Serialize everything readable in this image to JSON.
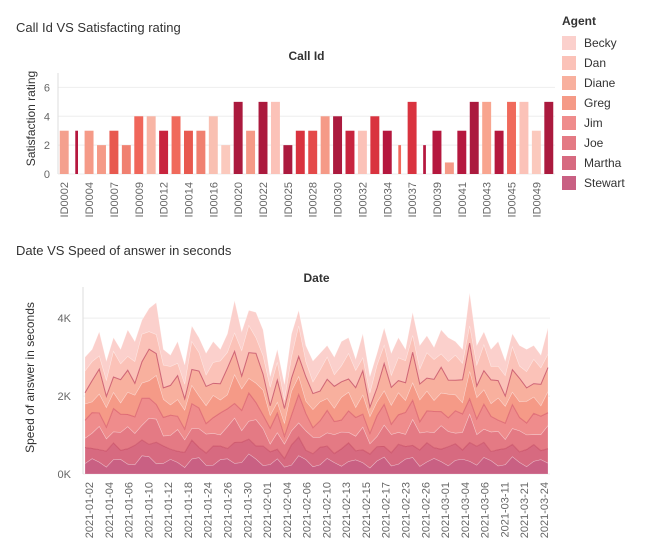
{
  "colors": {
    "Becky": "#fbd0cc",
    "Dan": "#fbc2b8",
    "Diane": "#f8b09e",
    "Greg": "#f59a87",
    "Jim": "#ef8c8c",
    "Joe": "#e47a84",
    "Martha": "#d76a80",
    "Stewart": "#c96083"
  },
  "legend": {
    "title": "Agent",
    "items": [
      "Becky",
      "Dan",
      "Diane",
      "Greg",
      "Jim",
      "Joe",
      "Martha",
      "Stewart"
    ]
  },
  "chart_data": [
    {
      "type": "bar",
      "section_title": "Call Id VS Satisfacting rating",
      "title": "Call Id",
      "xlabel": "",
      "ylabel": "Satisfaction rating",
      "ylim": [
        0,
        7
      ],
      "yticks": [
        0,
        2,
        4,
        6
      ],
      "xtick_labels": [
        "ID0002",
        "ID0004",
        "ID0007",
        "ID0009",
        "ID0012",
        "ID0014",
        "ID0016",
        "ID0020",
        "ID0022",
        "ID0025",
        "ID0028",
        "ID0030",
        "ID0032",
        "ID0034",
        "ID0037",
        "ID0039",
        "ID0041",
        "ID0043",
        "ID0045",
        "ID0049"
      ],
      "bars": [
        {
          "value": 3,
          "color": "#f4a08e"
        },
        {
          "value": 3,
          "color": "#b5173e",
          "width": 0.22
        },
        {
          "value": 3,
          "color": "#f59a87"
        },
        {
          "value": 2,
          "color": "#f59a87"
        },
        {
          "value": 3,
          "color": "#e8594f"
        },
        {
          "value": 2,
          "color": "#f08070"
        },
        {
          "value": 4,
          "color": "#f0665a"
        },
        {
          "value": 4,
          "color": "#f8b5a5"
        },
        {
          "value": 3,
          "color": "#c8243e"
        },
        {
          "value": 4,
          "color": "#f06a5c"
        },
        {
          "value": 3,
          "color": "#e8594f"
        },
        {
          "value": 3,
          "color": "#f08070"
        },
        {
          "value": 4,
          "color": "#f9c0b2"
        },
        {
          "value": 2,
          "color": "#fbc9bd"
        },
        {
          "value": 5,
          "color": "#ab1a3e"
        },
        {
          "value": 3,
          "color": "#f59a87"
        },
        {
          "value": 5,
          "color": "#ab1a3e"
        },
        {
          "value": 5,
          "color": "#fbc2b8"
        },
        {
          "value": 2,
          "color": "#ab1a3e"
        },
        {
          "value": 3,
          "color": "#d9333f"
        },
        {
          "value": 3,
          "color": "#e44a4a"
        },
        {
          "value": 4,
          "color": "#f59a87"
        },
        {
          "value": 4,
          "color": "#ab1a3e"
        },
        {
          "value": 3,
          "color": "#c8243e"
        },
        {
          "value": 3,
          "color": "#fbc2b8"
        },
        {
          "value": 4,
          "color": "#d9333f"
        },
        {
          "value": 3,
          "color": "#b5173e"
        },
        {
          "value": 2,
          "color": "#f06a5c",
          "width": 0.22
        },
        {
          "value": 5,
          "color": "#d9333f"
        },
        {
          "value": 2,
          "color": "#b5173e",
          "width": 0.22
        },
        {
          "value": 3,
          "color": "#b5173e"
        },
        {
          "value": 0.8,
          "color": "#f59a87"
        },
        {
          "value": 3,
          "color": "#b5173e"
        },
        {
          "value": 5,
          "color": "#ab1a3e"
        },
        {
          "value": 5,
          "color": "#f8a58f"
        },
        {
          "value": 3,
          "color": "#b5173e"
        },
        {
          "value": 5,
          "color": "#f06a5c"
        },
        {
          "value": 5,
          "color": "#fbc2b8"
        },
        {
          "value": 3,
          "color": "#fbc9bd"
        },
        {
          "value": 5,
          "color": "#ab1a3e"
        }
      ]
    },
    {
      "type": "area",
      "stacked": true,
      "section_title": "Date VS Speed of answer in seconds",
      "title": "Date",
      "xlabel": "",
      "ylabel": "Speed of answer in seconds",
      "ylim": [
        0,
        4800
      ],
      "yticks": [
        0,
        2000,
        4000
      ],
      "ytick_labels": [
        "0K",
        "2K",
        "4K"
      ],
      "xtick_labels": [
        "2021-01-02",
        "2021-01-04",
        "2021-01-06",
        "2021-01-10",
        "2021-01-12",
        "2021-01-18",
        "2021-01-24",
        "2021-01-26",
        "2021-01-30",
        "2021-02-01",
        "2021-02-04",
        "2021-02-06",
        "2021-02-10",
        "2021-02-13",
        "2021-02-15",
        "2021-02-17",
        "2021-02-23",
        "2021-02-26",
        "2021-03-01",
        "2021-03-04",
        "2021-03-06",
        "2021-03-11",
        "2021-03-21",
        "2021-03-24"
      ],
      "series_order": [
        "Stewart",
        "Martha",
        "Joe",
        "Jim",
        "Greg",
        "Diane",
        "Dan",
        "Becky"
      ],
      "totals": [
        3000,
        3200,
        3650,
        2900,
        3500,
        3200,
        3700,
        3400,
        3950,
        4250,
        4400,
        3200,
        3050,
        3400,
        2800,
        3800,
        3500,
        3100,
        3400,
        3200,
        3600,
        4450,
        3650,
        4200,
        4150,
        3700,
        2500,
        3200,
        2300,
        3600,
        4200,
        3300,
        2900,
        3100,
        3300,
        3000,
        3400,
        3500,
        2950,
        3600,
        2500,
        3100,
        3750,
        3100,
        3500,
        3200,
        4150,
        3300,
        3550,
        3250,
        3700,
        3500,
        3400,
        3200,
        4650,
        3300,
        3650,
        3200,
        3400,
        2900,
        3600,
        3300,
        3200,
        3300,
        3050,
        3750
      ],
      "shares": [
        0.09,
        0.11,
        0.12,
        0.13,
        0.13,
        0.14,
        0.14,
        0.14
      ]
    }
  ]
}
